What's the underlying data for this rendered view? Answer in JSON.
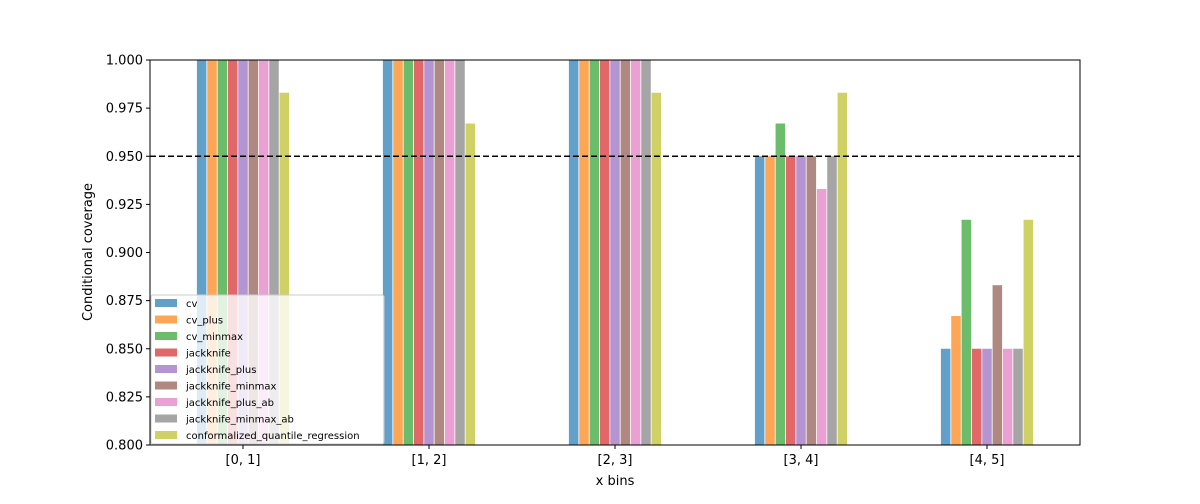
{
  "chart_data": {
    "type": "bar",
    "title": "",
    "xlabel": "x bins",
    "ylabel": "Conditional coverage",
    "ylim": [
      0.8,
      1.0
    ],
    "yticks": [
      "0.800",
      "0.825",
      "0.850",
      "0.875",
      "0.900",
      "0.925",
      "0.950",
      "0.975",
      "1.000"
    ],
    "categories": [
      "[0, 1]",
      "[1, 2]",
      "[2, 3]",
      "[3, 4]",
      "[4, 5]"
    ],
    "reference_line": {
      "y": 0.95,
      "style": "dashed",
      "color": "#000000"
    },
    "legend_position": "lower-left",
    "grid": false,
    "bar_alpha": 0.7,
    "series": [
      {
        "name": "cv",
        "color": "#1f77b4",
        "values": [
          1.0,
          1.0,
          1.0,
          0.95,
          0.85
        ]
      },
      {
        "name": "cv_plus",
        "color": "#ff7f0e",
        "values": [
          1.0,
          1.0,
          1.0,
          0.95,
          0.867
        ]
      },
      {
        "name": "cv_minmax",
        "color": "#2ca02c",
        "values": [
          1.0,
          1.0,
          1.0,
          0.967,
          0.917
        ]
      },
      {
        "name": "jackknife",
        "color": "#d62728",
        "values": [
          1.0,
          1.0,
          1.0,
          0.95,
          0.85
        ]
      },
      {
        "name": "jackknife_plus",
        "color": "#9467bd",
        "values": [
          1.0,
          1.0,
          1.0,
          0.95,
          0.85
        ]
      },
      {
        "name": "jackknife_minmax",
        "color": "#8c564b",
        "values": [
          1.0,
          1.0,
          1.0,
          0.95,
          0.883
        ]
      },
      {
        "name": "jackknife_plus_ab",
        "color": "#e377c2",
        "values": [
          1.0,
          1.0,
          1.0,
          0.933,
          0.85
        ]
      },
      {
        "name": "jackknife_minmax_ab",
        "color": "#7f7f7f",
        "values": [
          1.0,
          1.0,
          1.0,
          0.95,
          0.85
        ]
      },
      {
        "name": "conformalized_quantile_regression",
        "color": "#bcbd22",
        "values": [
          0.983,
          0.967,
          0.983,
          0.983,
          0.917
        ]
      }
    ]
  }
}
